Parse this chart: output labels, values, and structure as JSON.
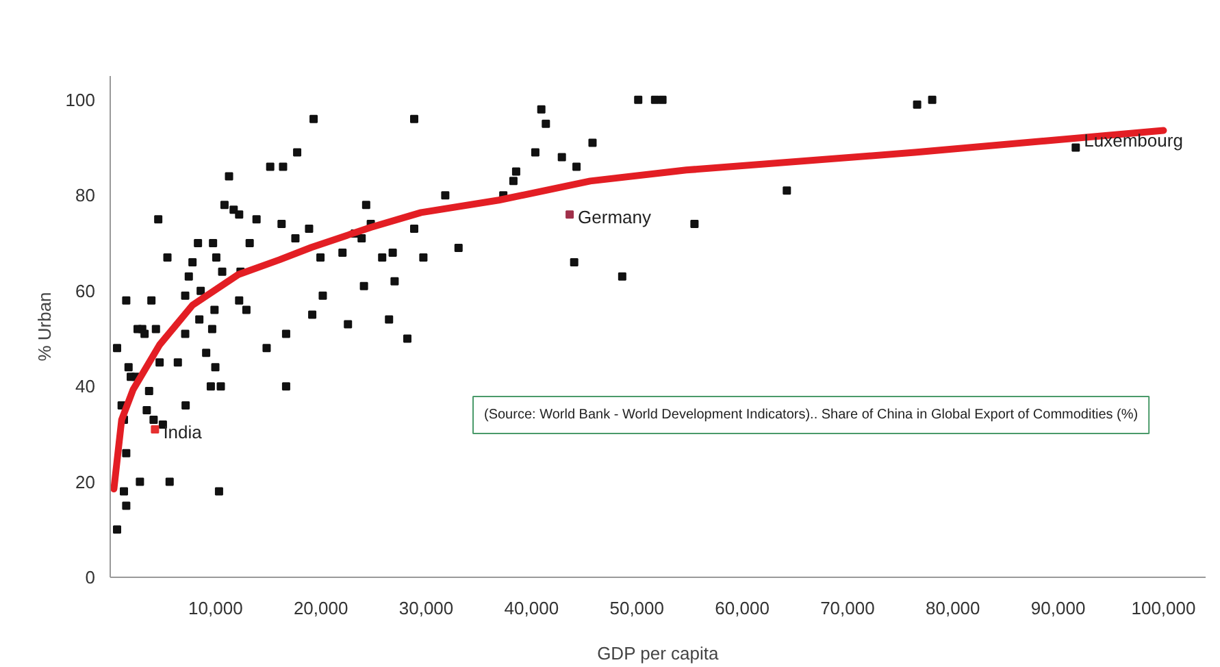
{
  "chart_data": {
    "type": "scatter",
    "xlabel": "GDP per capita",
    "ylabel": "% Urban",
    "xlim": [
      0,
      104000
    ],
    "ylim": [
      0,
      105
    ],
    "xticks": [
      {
        "value": 10000,
        "label": "10,000"
      },
      {
        "value": 20000,
        "label": "20,000"
      },
      {
        "value": 30000,
        "label": "30,000"
      },
      {
        "value": 40000,
        "label": "40,000"
      },
      {
        "value": 50000,
        "label": "50,000"
      },
      {
        "value": 60000,
        "label": "60,000"
      },
      {
        "value": 70000,
        "label": "70,000"
      },
      {
        "value": 80000,
        "label": "80,000"
      },
      {
        "value": 90000,
        "label": "90,000"
      },
      {
        "value": 100000,
        "label": "100,000"
      }
    ],
    "yticks": [
      0,
      20,
      40,
      60,
      80,
      100
    ],
    "grid": false,
    "marker": "square",
    "series": [
      {
        "color": "#111111",
        "x": [
          650,
          1520,
          1085,
          1740,
          1950,
          2390,
          1300,
          3040,
          2600,
          3260,
          3690,
          3470,
          3910,
          4560,
          4340,
          4690,
          4120,
          5000,
          1300,
          1520,
          2820,
          650,
          1520,
          5430,
          6420,
          7120,
          7120,
          5640,
          7160,
          7460,
          7810,
          8330,
          8460,
          8590,
          9110,
          9760,
          9900,
          9680,
          9980,
          9550,
          10500,
          10070,
          10630,
          10330,
          10850,
          11280,
          11720,
          12240,
          12370,
          12240,
          12930,
          13240,
          13890,
          14850,
          15190,
          16410,
          16270,
          16700,
          16700,
          17580,
          17750,
          18880,
          19310,
          19180,
          19960,
          20180,
          22570,
          22050,
          23220,
          24090,
          24300,
          24740,
          23870,
          25820,
          26820,
          27000,
          26470,
          28210,
          28860,
          28860,
          29730,
          31810,
          33070,
          37320,
          38280,
          38540,
          40360,
          40930,
          41360,
          42880,
          44270,
          44050,
          45790,
          48610,
          50130,
          51730,
          52430,
          55470,
          64240,
          76610,
          78040,
          91670
        ],
        "values": [
          48,
          58,
          36,
          44,
          42,
          42,
          33,
          52,
          52,
          51,
          39,
          35,
          58,
          75,
          52,
          45,
          33,
          32,
          18,
          15,
          20,
          10,
          26,
          67,
          45,
          51,
          59,
          20,
          36,
          63,
          66,
          70,
          54,
          60,
          47,
          70,
          56,
          52,
          44,
          40,
          40,
          67,
          64,
          18,
          78,
          84,
          77,
          76,
          64,
          58,
          56,
          70,
          75,
          48,
          86,
          86,
          74,
          51,
          40,
          71,
          89,
          73,
          96,
          55,
          67,
          59,
          53,
          68,
          72,
          61,
          78,
          74,
          71,
          67,
          68,
          62,
          54,
          50,
          73,
          96,
          67,
          80,
          69,
          80,
          83,
          85,
          89,
          98,
          95,
          88,
          86,
          66,
          91,
          63,
          100,
          100,
          100,
          74,
          81,
          99,
          100,
          90
        ]
      },
      {
        "color": "#e53030",
        "x": [
          4250
        ],
        "values": [
          31
        ]
      },
      {
        "color": "#a0304a",
        "x": [
          43620
        ],
        "values": [
          76
        ]
      },
      {
        "type": "line",
        "color": "#e31e24",
        "marker": "none",
        "x": [
          350,
          1085,
          2170,
          4690,
          6080,
          7810,
          12150,
          16060,
          19100,
          24740,
          29510,
          36890,
          45570,
          54690,
          76390,
          100000
        ],
        "values": [
          18.5,
          33,
          39.3,
          48.7,
          52.4,
          57,
          63.4,
          66.5,
          69.1,
          73.3,
          76.4,
          79,
          83,
          85.3,
          89,
          93.6
        ]
      }
    ],
    "annotations": [
      {
        "text": "India",
        "x": 4250,
        "y": 31
      },
      {
        "text": "Germany",
        "x": 43620,
        "y": 76
      },
      {
        "text": "Luxembourg",
        "x": 91670,
        "y": 90
      },
      "(Source: World Bank - World Development Indicators).. Share of China in Global Export of Commodities (%)"
    ]
  }
}
